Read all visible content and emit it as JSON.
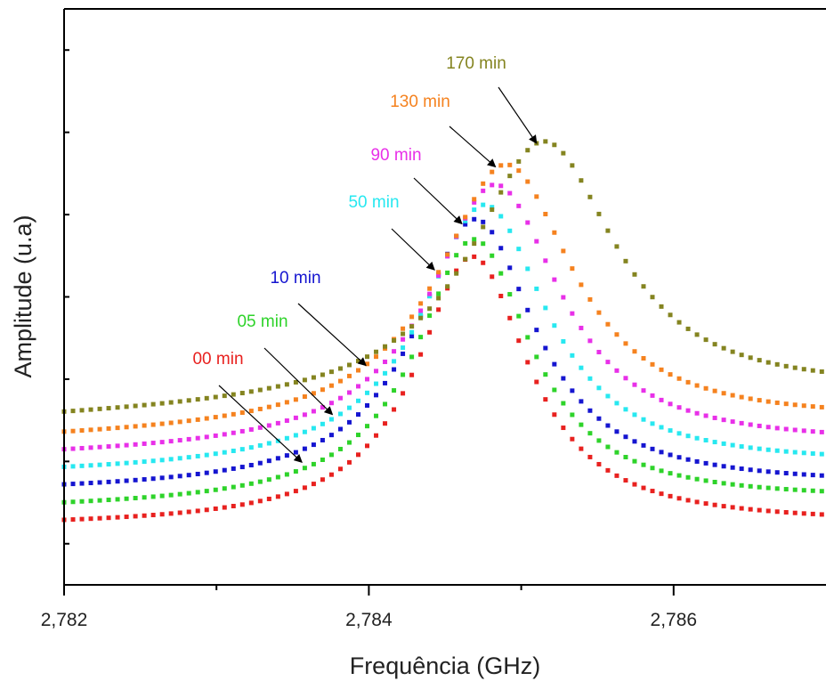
{
  "chart_data": {
    "type": "scatter",
    "title": "",
    "xlabel": "Frequência (GHz)",
    "ylabel": "Amplitude (u.a)",
    "xlim": [
      2.782,
      2.787
    ],
    "ylim": [
      0,
      1
    ],
    "y_ticks_labeled": false,
    "x_ticks": [
      {
        "value": 2.782,
        "label": "2,782"
      },
      {
        "value": 2.784,
        "label": "2,784"
      },
      {
        "value": 2.786,
        "label": "2,786"
      }
    ],
    "x_minor_ticks": [
      2.783,
      2.785
    ],
    "grid": false,
    "legend": "none",
    "series": [
      {
        "name": "00 min",
        "color": "#e8211f",
        "peak_x": 2.78468,
        "peak_y": 0.57,
        "base_left": 0.1,
        "base_right": 0.105,
        "gamma": 0.00045
      },
      {
        "name": "05 min",
        "color": "#2ed32a",
        "peak_x": 2.78469,
        "peak_y": 0.6,
        "base_left": 0.13,
        "base_right": 0.145,
        "gamma": 0.00046
      },
      {
        "name": "10 min",
        "color": "#1515d0",
        "peak_x": 2.7847,
        "peak_y": 0.635,
        "base_left": 0.16,
        "base_right": 0.17,
        "gamma": 0.00048
      },
      {
        "name": "50 min",
        "color": "#27e8f0",
        "peak_x": 2.78476,
        "peak_y": 0.66,
        "base_left": 0.19,
        "base_right": 0.205,
        "gamma": 0.0005
      },
      {
        "name": "90 min",
        "color": "#e830e8",
        "peak_x": 2.78483,
        "peak_y": 0.695,
        "base_left": 0.22,
        "base_right": 0.24,
        "gamma": 0.00052
      },
      {
        "name": "130 min",
        "color": "#f5821f",
        "peak_x": 2.7849,
        "peak_y": 0.73,
        "base_left": 0.25,
        "base_right": 0.28,
        "gamma": 0.00054
      },
      {
        "name": "170 min",
        "color": "#848420",
        "peak_x": 2.78515,
        "peak_y": 0.77,
        "base_left": 0.285,
        "base_right": 0.33,
        "gamma": 0.00058
      }
    ],
    "annotations": [
      {
        "text": "00 min",
        "color": "#e8211f",
        "arrow_to_x": 2.78356,
        "arrow_to_y": 0.213
      },
      {
        "text": "05 min",
        "color": "#2ed32a",
        "arrow_to_x": 2.78376,
        "arrow_to_y": 0.296
      },
      {
        "text": "10 min",
        "color": "#1515d0",
        "arrow_to_x": 2.78398,
        "arrow_to_y": 0.381
      },
      {
        "text": "50 min",
        "color": "#27e8f0",
        "arrow_to_x": 2.78443,
        "arrow_to_y": 0.547
      },
      {
        "text": "90 min",
        "color": "#e830e8",
        "arrow_to_x": 2.78461,
        "arrow_to_y": 0.627
      },
      {
        "text": "130 min",
        "color": "#f5821f",
        "arrow_to_x": 2.78483,
        "arrow_to_y": 0.726
      },
      {
        "text": "170 min",
        "color": "#848420",
        "arrow_to_x": 2.7851,
        "arrow_to_y": 0.767
      }
    ]
  }
}
